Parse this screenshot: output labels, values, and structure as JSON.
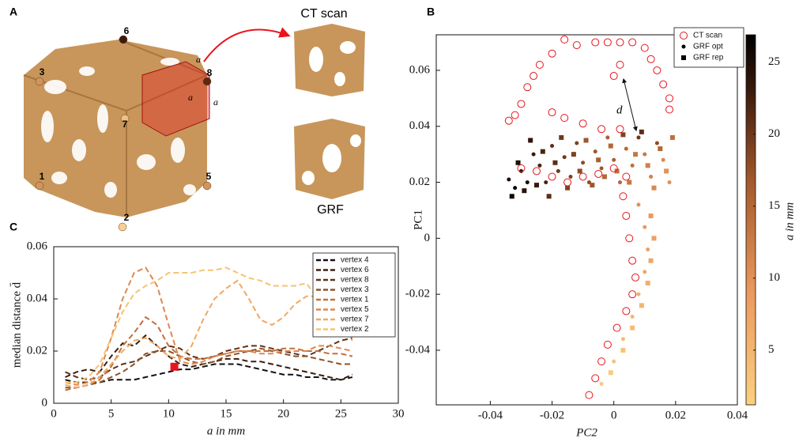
{
  "panel_labels": [
    "A",
    "B",
    "C"
  ],
  "panel_a": {
    "ct_label": "CT scan",
    "grf_label": "GRF",
    "vertices": [
      "6",
      "3",
      "8",
      "7",
      "1",
      "5",
      "2"
    ],
    "edge_labels": [
      "a",
      "a",
      "a"
    ]
  },
  "chart_data": [
    {
      "type": "line",
      "xlabel": "a  in mm",
      "ylabel": "median distance d̄",
      "xlim": [
        0,
        30
      ],
      "xticks": [
        0,
        5,
        10,
        15,
        20,
        25,
        30
      ],
      "ylim": [
        0,
        0.06
      ],
      "yticks": [
        {
          "value": 0,
          "label": "0"
        },
        {
          "value": 0.02,
          "label": "0.02"
        },
        {
          "value": 0.04,
          "label": "0.04"
        },
        {
          "value": 0.06,
          "label": "0.06"
        }
      ],
      "x": [
        1,
        2,
        3,
        4,
        5,
        6,
        7,
        8,
        9,
        10,
        11,
        12,
        13,
        14,
        15,
        16,
        17,
        18,
        19,
        20,
        21,
        22,
        23,
        24,
        25,
        26
      ],
      "highlight": {
        "x": 10.5,
        "y": 0.014,
        "color": "#e8141c"
      },
      "legend": "upper right",
      "series": [
        {
          "name": "vertex 4",
          "color": "#111111",
          "values": [
            0.009,
            0.008,
            0.008,
            0.008,
            0.009,
            0.009,
            0.009,
            0.01,
            0.011,
            0.012,
            0.013,
            0.013,
            0.014,
            0.015,
            0.015,
            0.015,
            0.014,
            0.013,
            0.012,
            0.011,
            0.011,
            0.01,
            0.01,
            0.009,
            0.009,
            0.01
          ]
        },
        {
          "name": "vertex 6",
          "color": "#3a1e10",
          "values": [
            0.01,
            0.012,
            0.013,
            0.012,
            0.018,
            0.023,
            0.022,
            0.026,
            0.022,
            0.018,
            0.015,
            0.014,
            0.015,
            0.016,
            0.017,
            0.017,
            0.016,
            0.016,
            0.015,
            0.014,
            0.013,
            0.012,
            0.011,
            0.01,
            0.009,
            0.011
          ]
        },
        {
          "name": "vertex 8",
          "color": "#5e3219",
          "values": [
            0.012,
            0.01,
            0.009,
            0.01,
            0.013,
            0.015,
            0.016,
            0.018,
            0.02,
            0.022,
            0.021,
            0.018,
            0.017,
            0.018,
            0.02,
            0.021,
            0.022,
            0.022,
            0.021,
            0.02,
            0.019,
            0.018,
            0.02,
            0.022,
            0.024,
            0.025
          ]
        },
        {
          "name": "vertex 3",
          "color": "#8f5128",
          "values": [
            0.006,
            0.006,
            0.007,
            0.008,
            0.01,
            0.012,
            0.015,
            0.019,
            0.02,
            0.02,
            0.018,
            0.016,
            0.015,
            0.016,
            0.018,
            0.019,
            0.02,
            0.021,
            0.02,
            0.019,
            0.018,
            0.018,
            0.017,
            0.016,
            0.015,
            0.015
          ]
        },
        {
          "name": "vertex 1",
          "color": "#c3703c",
          "values": [
            0.005,
            0.006,
            0.007,
            0.009,
            0.014,
            0.022,
            0.027,
            0.033,
            0.03,
            0.022,
            0.018,
            0.017,
            0.017,
            0.018,
            0.019,
            0.02,
            0.02,
            0.02,
            0.02,
            0.021,
            0.021,
            0.02,
            0.02,
            0.019,
            0.019,
            0.018
          ]
        },
        {
          "name": "vertex 5",
          "color": "#e0874c",
          "values": [
            0.008,
            0.007,
            0.008,
            0.012,
            0.025,
            0.04,
            0.05,
            0.052,
            0.045,
            0.03,
            0.016,
            0.015,
            0.016,
            0.018,
            0.019,
            0.02,
            0.02,
            0.019,
            0.019,
            0.02,
            0.02,
            0.02,
            0.022,
            0.022,
            0.021,
            0.02
          ]
        },
        {
          "name": "vertex 7",
          "color": "#f0a862",
          "values": [
            0.007,
            0.006,
            0.007,
            0.01,
            0.015,
            0.02,
            0.024,
            0.025,
            0.022,
            0.018,
            0.017,
            0.022,
            0.032,
            0.04,
            0.044,
            0.047,
            0.04,
            0.032,
            0.03,
            0.033,
            0.038,
            0.041,
            0.041,
            0.036,
            0.03,
            0.024
          ]
        },
        {
          "name": "vertex 2",
          "color": "#f7c370",
          "values": [
            0.008,
            0.008,
            0.01,
            0.015,
            0.025,
            0.035,
            0.042,
            0.045,
            0.047,
            0.05,
            0.05,
            0.05,
            0.051,
            0.051,
            0.052,
            0.05,
            0.048,
            0.047,
            0.045,
            0.045,
            0.045,
            0.046,
            0.04,
            0.035,
            0.03,
            0.025
          ]
        }
      ]
    },
    {
      "type": "scatter",
      "xlabel": "PC2",
      "ylabel": "PC1",
      "annotation": "d",
      "xlim": [
        -0.0575,
        0.04
      ],
      "xticks": [
        {
          "value": -0.04,
          "label": "-0.04"
        },
        {
          "value": -0.02,
          "label": "-0.02"
        },
        0,
        {
          "value": 0.02,
          "label": "0.02"
        },
        {
          "value": 0.04,
          "label": "0.04"
        }
      ],
      "ylim": [
        -0.0595,
        0.0727
      ],
      "yticks": [
        {
          "value": -0.04,
          "label": "-0.04"
        },
        {
          "value": -0.02,
          "label": "-0.02"
        },
        0,
        {
          "value": 0.02,
          "label": "0.02"
        },
        {
          "value": 0.04,
          "label": "0.04"
        },
        {
          "value": 0.06,
          "label": "0.06"
        }
      ],
      "colorbar": {
        "label": "a in mm",
        "clim": [
          1.2,
          26.9
        ],
        "ticks": [
          5,
          10,
          15,
          20,
          25
        ]
      },
      "legend": "upper right",
      "series": [
        {
          "name": "CT scan",
          "marker": "open-circle",
          "color": "#e8141c",
          "x": [
            -0.016,
            -0.012,
            -0.006,
            -0.002,
            0.002,
            0.006,
            0.01,
            -0.02,
            -0.024,
            -0.026,
            -0.028,
            -0.03,
            -0.032,
            -0.034,
            0,
            0.002,
            0.012,
            0.014,
            0.016,
            0.018,
            0.018,
            -0.02,
            -0.016,
            -0.01,
            -0.004,
            0.002,
            -0.03,
            -0.025,
            -0.02,
            -0.015,
            -0.01,
            -0.005,
            0,
            0.004,
            0.003,
            0.004,
            0.005,
            0.006,
            0.007,
            0.006,
            0.004,
            0.001,
            -0.002,
            -0.004,
            -0.006,
            -0.008
          ],
          "values": [
            0.071,
            0.069,
            0.07,
            0.07,
            0.07,
            0.07,
            0.068,
            0.066,
            0.062,
            0.058,
            0.054,
            0.048,
            0.044,
            0.042,
            0.058,
            0.062,
            0.064,
            0.06,
            0.055,
            0.05,
            0.046,
            0.045,
            0.043,
            0.041,
            0.039,
            0.039,
            0.025,
            0.024,
            0.022,
            0.02,
            0.022,
            0.023,
            0.025,
            0.022,
            0.015,
            0.008,
            0,
            -0.008,
            -0.014,
            -0.02,
            -0.026,
            -0.032,
            -0.038,
            -0.044,
            -0.05,
            -0.056
          ]
        },
        {
          "name": "GRF opt",
          "marker": "dot",
          "x": [
            -0.034,
            -0.032,
            -0.03,
            -0.028,
            -0.026,
            -0.024,
            -0.022,
            -0.02,
            -0.018,
            -0.016,
            -0.014,
            -0.012,
            -0.01,
            -0.008,
            -0.006,
            -0.004,
            -0.002,
            0,
            0.002,
            0.004,
            0.006,
            0.008,
            0.01,
            0.012,
            0.014,
            0.016,
            0.018,
            0.008,
            0.01,
            0.011,
            0.01,
            0.008,
            0.006,
            0.003,
            0,
            -0.004
          ],
          "values": [
            0.021,
            0.018,
            0.024,
            0.02,
            0.03,
            0.026,
            0.02,
            0.033,
            0.024,
            0.029,
            0.022,
            0.034,
            0.027,
            0.02,
            0.031,
            0.025,
            0.036,
            0.028,
            0.02,
            0.032,
            0.026,
            0.036,
            0.03,
            0.022,
            0.034,
            0.028,
            0.02,
            0.012,
            0.004,
            -0.004,
            -0.012,
            -0.02,
            -0.028,
            -0.036,
            -0.044,
            -0.052
          ],
          "c": [
            25,
            26,
            24,
            25,
            23,
            22,
            22,
            21,
            20,
            20,
            19,
            19,
            18,
            18,
            17,
            17,
            16,
            16,
            15,
            15,
            14,
            20,
            13,
            12,
            18,
            11,
            10,
            10,
            9,
            8,
            7,
            6,
            5,
            4,
            3,
            2
          ]
        },
        {
          "name": "GRF rep",
          "marker": "square",
          "x": [
            -0.033,
            -0.031,
            -0.029,
            -0.027,
            -0.025,
            -0.023,
            -0.021,
            -0.019,
            -0.017,
            -0.015,
            -0.013,
            -0.011,
            -0.009,
            -0.007,
            -0.005,
            -0.003,
            -0.001,
            0.001,
            0.003,
            0.005,
            0.007,
            0.009,
            0.011,
            0.013,
            0.015,
            0.017,
            0.019,
            0.012,
            0.013,
            0.012,
            0.011,
            0.009,
            0.006,
            0.003,
            -0.001
          ],
          "values": [
            0.015,
            0.027,
            0.017,
            0.035,
            0.019,
            0.031,
            0.015,
            0.027,
            0.036,
            0.018,
            0.03,
            0.024,
            0.035,
            0.019,
            0.028,
            0.022,
            0.033,
            0.024,
            0.037,
            0.02,
            0.03,
            0.038,
            0.026,
            0.018,
            0.032,
            0.024,
            0.036,
            0.008,
            0,
            -0.008,
            -0.016,
            -0.024,
            -0.032,
            -0.04,
            -0.048
          ],
          "c": [
            26,
            25,
            24,
            24,
            23,
            22,
            21,
            21,
            20,
            19,
            19,
            18,
            17,
            17,
            16,
            15,
            15,
            14,
            19,
            13,
            13,
            21,
            12,
            11,
            15,
            10,
            14,
            9,
            8,
            7,
            6,
            5,
            4,
            3,
            2
          ]
        }
      ]
    }
  ]
}
